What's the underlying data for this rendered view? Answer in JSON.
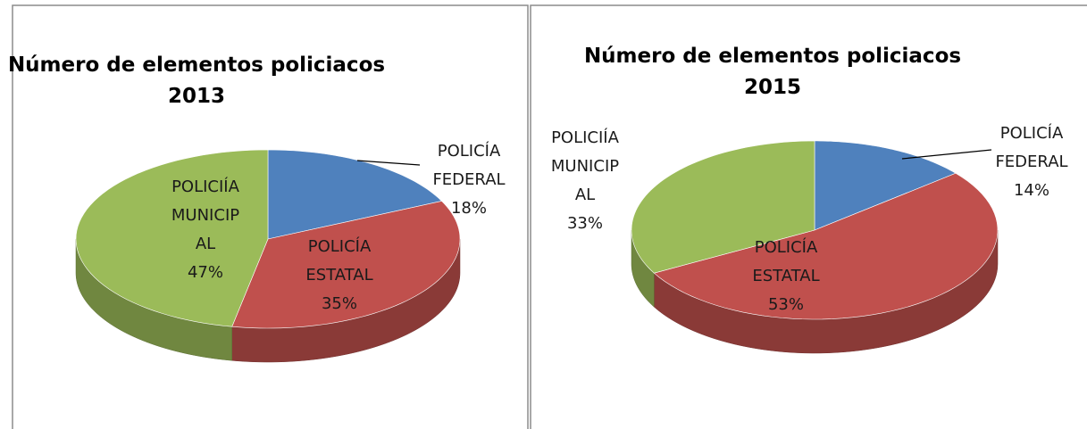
{
  "chart_data": [
    {
      "type": "pie",
      "title": "Número de elementos policiacos 2013",
      "categories": [
        "POLICÍA FEDERAL",
        "POLICÍA ESTATAL",
        "POLICIÍA MUNICIPAL"
      ],
      "values": [
        18,
        35,
        47
      ],
      "value_labels": [
        "18%",
        "35%",
        "47%"
      ],
      "colors": [
        "#4f81bd",
        "#c0504d",
        "#9bbb59"
      ]
    },
    {
      "type": "pie",
      "title": "Número de elementos policiacos 2015",
      "categories": [
        "POLICÍA FEDERAL",
        "POLICÍA ESTATAL",
        "POLICIÍA MUNICIPAL"
      ],
      "values": [
        14,
        53,
        33
      ],
      "value_labels": [
        "14%",
        "53%",
        "33%"
      ],
      "colors": [
        "#4f81bd",
        "#c0504d",
        "#9bbb59"
      ]
    }
  ]
}
